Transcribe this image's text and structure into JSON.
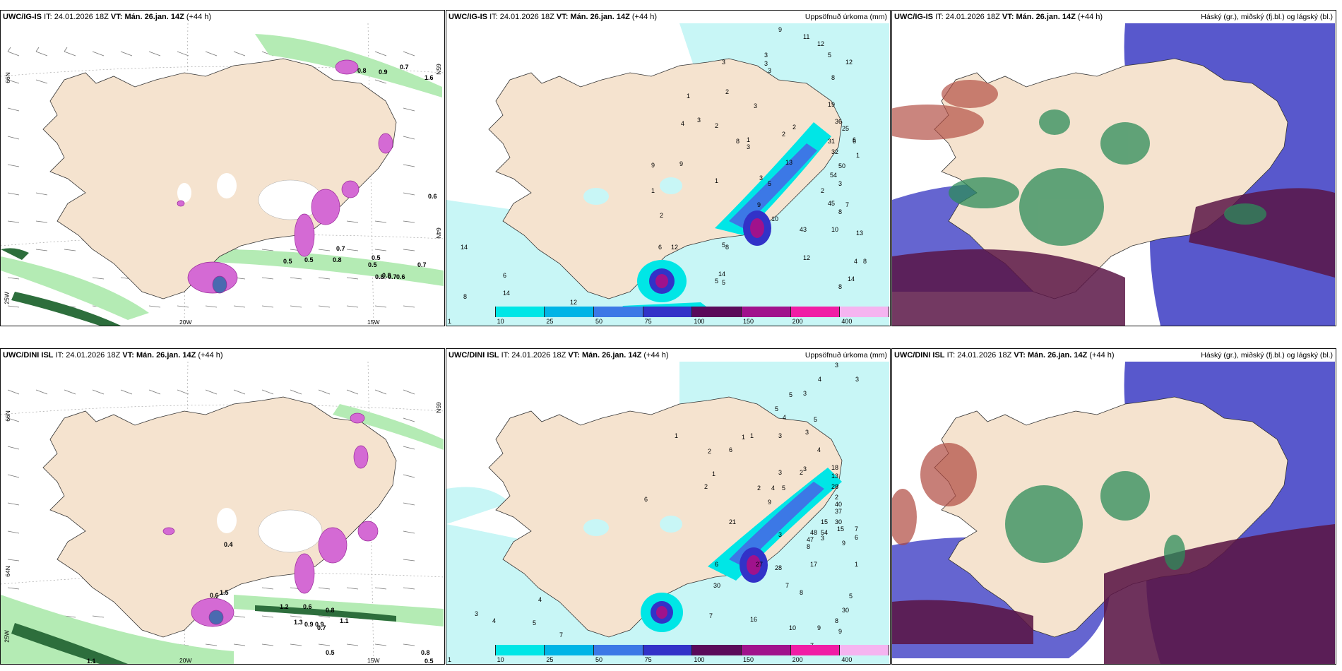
{
  "rows": [
    {
      "model": "UWC/IG-IS",
      "it_label": "IT:",
      "it_value": "24.01.2026 18Z",
      "vt_label": "VT:",
      "vt_value": "Mán. 26.jan. 14Z",
      "lead": "(+44 h)"
    },
    {
      "model": "UWC/DINI ISL",
      "it_label": "IT:",
      "it_value": "24.01.2026 18Z",
      "vt_label": "VT:",
      "vt_value": "Mán. 26.jan. 14Z",
      "lead": "(+44 h)"
    }
  ],
  "panel_titles": {
    "precip": "Uppsöfnuð úrkoma (mm)",
    "cloud": "Háský (gr.), miðský (fj.bl.) og lágský (bl.)"
  },
  "geo_labels": {
    "lat_66n": "66N",
    "lat_64n": "64N",
    "lat_65n": "65N",
    "lon_20w": "20W",
    "lon_15w": "15W",
    "lon_25w": "25W"
  },
  "precip_legend": {
    "thresholds": [
      "1",
      "10",
      "25",
      "50",
      "75",
      "100",
      "150",
      "200",
      "400"
    ],
    "colors": [
      "#c8f6f6",
      "#00e6e6",
      "#00b4e6",
      "#3c78e6",
      "#3232c8",
      "#5a0a5a",
      "#a0128c",
      "#f01ea5",
      "#f5b4f0"
    ]
  },
  "precip_values_top": [
    "9",
    "11",
    "12",
    "3",
    "3",
    "3",
    "5",
    "12",
    "8",
    "1",
    "3",
    "2",
    "19",
    "3",
    "3",
    "4",
    "36",
    "2",
    "25",
    "9",
    "2",
    "6",
    "2",
    "1",
    "31",
    "32",
    "6",
    "3",
    "1",
    "9",
    "13",
    "50",
    "3",
    "5",
    "54",
    "3",
    "1",
    "1",
    "2",
    "8",
    "45",
    "9",
    "8",
    "7",
    "2",
    "10",
    "14",
    "10",
    "12",
    "5",
    "6",
    "43",
    "8",
    "12",
    "13",
    "4",
    "14",
    "8",
    "14",
    "5",
    "5",
    "8",
    "6",
    "8",
    "14",
    "12"
  ],
  "precip_values_bottom": [
    "3",
    "4",
    "3",
    "5",
    "3",
    "5",
    "4",
    "5",
    "3",
    "3",
    "1",
    "1",
    "1",
    "6",
    "4",
    "2",
    "3",
    "3",
    "2",
    "18",
    "13",
    "1",
    "2",
    "28",
    "2",
    "4",
    "5",
    "2",
    "40",
    "6",
    "9",
    "37",
    "30",
    "15",
    "21",
    "15",
    "7",
    "54",
    "48",
    "3",
    "9",
    "47",
    "8",
    "3",
    "6",
    "1",
    "17",
    "28",
    "27",
    "7",
    "8",
    "30",
    "5",
    "30",
    "16",
    "10",
    "9",
    "8",
    "9",
    "7",
    "3",
    "4",
    "5",
    "4",
    "7",
    "26",
    "7",
    "6"
  ],
  "wind_labels_top": [
    "0.8",
    "0.9",
    "0.7",
    "1.6",
    "0.6",
    "0.5",
    "0.8",
    "0.5",
    "0.5",
    "0.8",
    "0.7",
    "0.8",
    "0.6",
    "0.7",
    "0.5",
    "0.7"
  ],
  "wind_labels_bottom": [
    "0.4",
    "1.2",
    "0.6",
    "0.8",
    "1.1",
    "0.5",
    "0.9",
    "0.7",
    "1.5",
    "1.3",
    "0.6",
    "0.5",
    "0.8",
    "1.1",
    "0.9"
  ],
  "colors": {
    "land": "#f5e3cf",
    "ocean_precip": "#c8f6f6",
    "cloud_high": "#5a1646",
    "cloud_mid": "#2d8c5a",
    "cloud_low": "#3e3ec8",
    "wind_green": "#b4ebb4"
  }
}
